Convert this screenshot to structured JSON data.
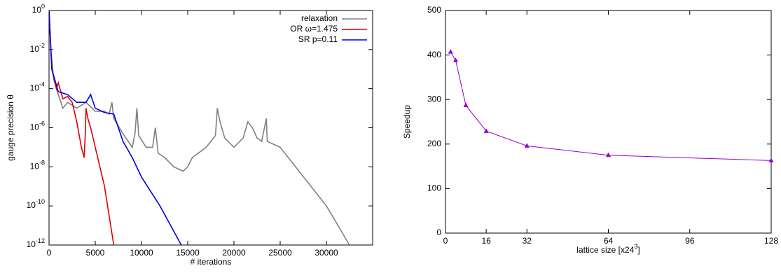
{
  "chart_data": [
    {
      "type": "line",
      "yscale": "log",
      "xlabel": "# iterations",
      "ylabel": "gauge precision θ",
      "xlim": [
        0,
        35000
      ],
      "xticks": [
        0,
        5000,
        10000,
        15000,
        20000,
        25000,
        30000
      ],
      "ylim": [
        1e-12,
        1
      ],
      "yticks": [
        {
          "value": 1,
          "label": "10",
          "exponent": "0"
        },
        {
          "value": 0.01,
          "label": "10",
          "exponent": "-2"
        },
        {
          "value": 0.0001,
          "label": "10",
          "exponent": "-4"
        },
        {
          "value": 1e-06,
          "label": "10",
          "exponent": "-6"
        },
        {
          "value": 1e-08,
          "label": "10",
          "exponent": "-8"
        },
        {
          "value": 1e-10,
          "label": "10",
          "exponent": "-10"
        },
        {
          "value": 1e-12,
          "label": "10",
          "exponent": "-12"
        }
      ],
      "legend": "top-right",
      "series": [
        {
          "name": "relaxation",
          "color": "#808080",
          "x": [
            0,
            200,
            500,
            1000,
            1500,
            2000,
            3000,
            4000,
            5000,
            6000,
            6500,
            6800,
            7000,
            8000,
            9000,
            9300,
            9500,
            9700,
            10500,
            11200,
            11500,
            11800,
            12500,
            13500,
            14500,
            15000,
            15500,
            17000,
            18000,
            18200,
            18500,
            19000,
            20000,
            21000,
            21500,
            22000,
            22500,
            23000,
            23500,
            23600,
            25000,
            30000,
            32500
          ],
          "values": [
            1,
            0.01,
            0.0003,
            5e-05,
            1e-05,
            2e-05,
            1e-05,
            2e-05,
            7e-06,
            7e-06,
            5e-06,
            2e-05,
            3e-06,
            5e-07,
            1e-07,
            5e-07,
            1e-05,
            4e-07,
            1e-07,
            1e-07,
            1e-06,
            5e-08,
            3e-08,
            1e-08,
            6e-09,
            1e-08,
            3e-08,
            1e-07,
            4e-07,
            1e-05,
            2e-06,
            3e-07,
            1e-07,
            3e-07,
            2e-06,
            1e-06,
            3e-07,
            2e-07,
            3e-06,
            2e-07,
            1e-07,
            1e-10,
            1e-12
          ]
        },
        {
          "name": "OR ω=1.475",
          "color": "#e00000",
          "x": [
            0,
            300,
            800,
            1000,
            1500,
            2000,
            2500,
            3000,
            3500,
            3800,
            3950,
            4000,
            4200,
            4500,
            5000,
            6000,
            7000
          ],
          "values": [
            1,
            0.001,
            0.0001,
            0.0002,
            3e-05,
            4e-05,
            2e-05,
            2e-06,
            1e-07,
            3e-08,
            1e-06,
            1e-05,
            3e-06,
            1e-06,
            1e-07,
            1e-09,
            1e-12
          ]
        },
        {
          "name": "SR p=0.11",
          "color": "#0000e0",
          "x": [
            0,
            300,
            1000,
            2000,
            3000,
            4000,
            4500,
            5000,
            6000,
            7000,
            7500,
            8000,
            9000,
            10000,
            12000,
            14300
          ],
          "values": [
            1,
            0.001,
            7e-05,
            5e-05,
            2e-05,
            2e-05,
            5e-05,
            1e-05,
            6e-06,
            5e-06,
            1e-06,
            2e-07,
            3e-08,
            3e-09,
            1e-10,
            1e-12
          ]
        }
      ]
    },
    {
      "type": "line",
      "ylabel": "Speedup",
      "xlabel": {
        "text": "lattice size [x24",
        "sup": "3",
        "tail": "]"
      },
      "xlim": [
        0,
        128
      ],
      "xticks": [
        0,
        16,
        32,
        64,
        96,
        128
      ],
      "ylim": [
        0,
        500
      ],
      "yticks": [
        0,
        100,
        200,
        300,
        400,
        500
      ],
      "marker": "triangle",
      "series": [
        {
          "color": "#9400d3",
          "x": [
            2,
            4,
            8,
            16,
            32,
            64,
            128
          ],
          "values": [
            407,
            388,
            287,
            229,
            196,
            175,
            163
          ]
        }
      ]
    }
  ]
}
